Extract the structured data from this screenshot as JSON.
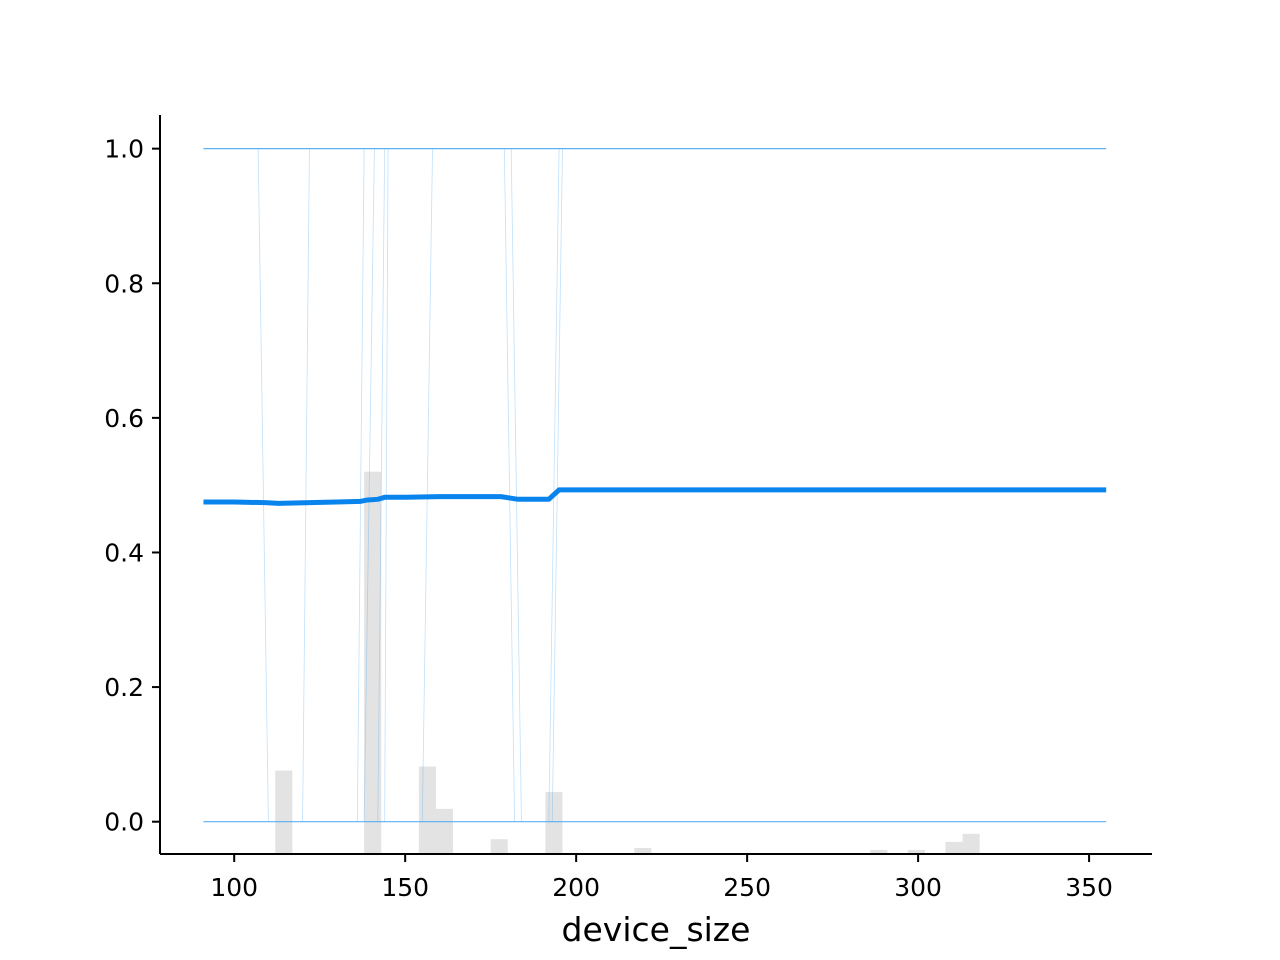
{
  "chart_data": {
    "type": "line",
    "title": "",
    "xlabel": "device_size",
    "ylabel": "",
    "xlim": [
      78.3,
      368.4
    ],
    "ylim": [
      -0.048,
      1.05
    ],
    "x_ticks": [
      100,
      150,
      200,
      250,
      300,
      350
    ],
    "y_ticks": [
      0.0,
      0.2,
      0.4,
      0.6,
      0.8,
      1.0
    ],
    "x_tick_labels": [
      "100",
      "150",
      "200",
      "250",
      "300",
      "350"
    ],
    "y_tick_labels": [
      "0.0",
      "0.2",
      "0.4",
      "0.6",
      "0.8",
      "1.0"
    ],
    "grid": false,
    "legend": "none",
    "colors": {
      "average_line": "#0a84ed",
      "ice_lines": "#4aa8f0",
      "histogram": "#e3e3e3",
      "axes": "#000000"
    },
    "average_line": {
      "x": [
        91,
        100,
        109,
        113,
        122,
        130,
        137,
        139,
        142,
        144,
        150,
        160,
        170,
        178,
        183,
        192,
        195,
        200,
        250,
        300,
        355
      ],
      "y": [
        0.475,
        0.475,
        0.474,
        0.473,
        0.474,
        0.475,
        0.476,
        0.478,
        0.479,
        0.482,
        0.482,
        0.483,
        0.483,
        0.483,
        0.479,
        0.479,
        0.493,
        0.493,
        0.493,
        0.493,
        0.493
      ]
    },
    "ice_lines": [
      {
        "x": [
          91,
          355
        ],
        "y": [
          1.0,
          1.0
        ]
      },
      {
        "x": [
          91,
          355
        ],
        "y": [
          0.0,
          0.0
        ]
      },
      {
        "x": [
          107,
          110
        ],
        "y": [
          1.0,
          0.0
        ]
      },
      {
        "x": [
          122,
          120
        ],
        "y": [
          1.0,
          0.0
        ]
      },
      {
        "x": [
          138,
          136
        ],
        "y": [
          1.0,
          0.0
        ]
      },
      {
        "x": [
          141,
          138
        ],
        "y": [
          1.0,
          0.0
        ]
      },
      {
        "x": [
          144,
          142
        ],
        "y": [
          1.0,
          0.0
        ]
      },
      {
        "x": [
          145,
          144
        ],
        "y": [
          1.0,
          0.0
        ]
      },
      {
        "x": [
          158,
          155
        ],
        "y": [
          1.0,
          0.0
        ]
      },
      {
        "x": [
          179,
          182
        ],
        "y": [
          1.0,
          0.0
        ]
      },
      {
        "x": [
          181,
          184
        ],
        "y": [
          1.0,
          0.0
        ]
      },
      {
        "x": [
          195,
          192
        ],
        "y": [
          1.0,
          0.0
        ]
      },
      {
        "x": [
          196,
          193
        ],
        "y": [
          1.0,
          0.0
        ]
      }
    ],
    "histogram": {
      "bin_edges": [
        112,
        117,
        138,
        143,
        154,
        159,
        164,
        175,
        180,
        191,
        196,
        217,
        222,
        286,
        291,
        297,
        302,
        308,
        313,
        318
      ],
      "bins": [
        {
          "x0": 112,
          "x1": 117,
          "top": 0.076
        },
        {
          "x0": 138,
          "x1": 143,
          "top": 0.52
        },
        {
          "x0": 154,
          "x1": 159,
          "top": 0.082
        },
        {
          "x0": 159,
          "x1": 164,
          "top": 0.019
        },
        {
          "x0": 175,
          "x1": 180,
          "top": -0.026
        },
        {
          "x0": 191,
          "x1": 196,
          "top": 0.044
        },
        {
          "x0": 217,
          "x1": 222,
          "top": -0.039
        },
        {
          "x0": 286,
          "x1": 291,
          "top": -0.042
        },
        {
          "x0": 297,
          "x1": 302,
          "top": -0.042
        },
        {
          "x0": 308,
          "x1": 313,
          "top": -0.03
        },
        {
          "x0": 313,
          "x1": 318,
          "top": -0.018
        }
      ]
    }
  }
}
